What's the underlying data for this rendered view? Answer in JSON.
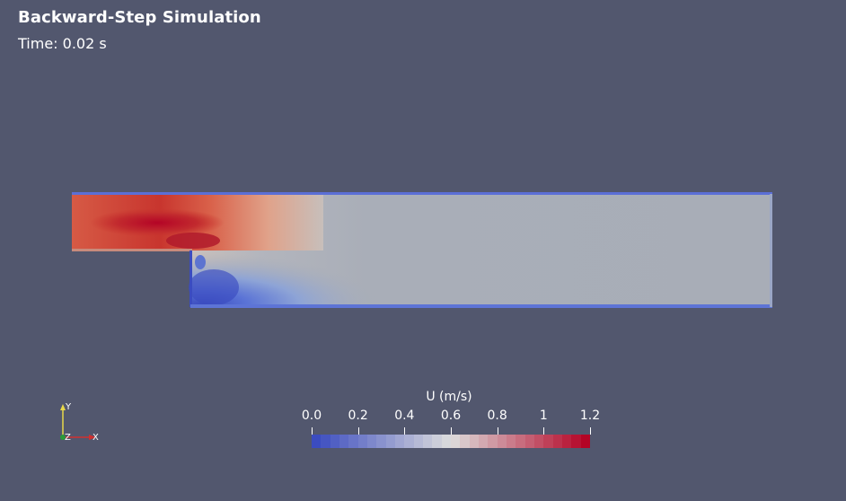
{
  "header": {
    "title": "Backward-Step Simulation",
    "time_label": "Time:",
    "time_value": "0.02 s"
  },
  "viewport": {
    "background": "#52576e",
    "field": "U magnitude (velocity)",
    "inlet_color": "#d44a3c",
    "core_color": "#b40426",
    "freestream_color": "#a8aeb8",
    "wall_color": "#3b4cc0"
  },
  "axes_triad": {
    "y_label": "Y",
    "z_label": "Z",
    "x_label": "X",
    "y_color": "#e8d84a",
    "x_color": "#d03030",
    "z_color": "#2a9a3a"
  },
  "colorbar": {
    "title": "U (m/s)",
    "min": 0.0,
    "max": 1.2,
    "tick_labels": [
      "0.0",
      "0.2",
      "0.4",
      "0.6",
      "0.8",
      "1",
      "1.2"
    ],
    "colormap": "cool-to-warm",
    "color_low": "#3b4cc0",
    "color_mid": "#dddddd",
    "color_high": "#b40426"
  }
}
